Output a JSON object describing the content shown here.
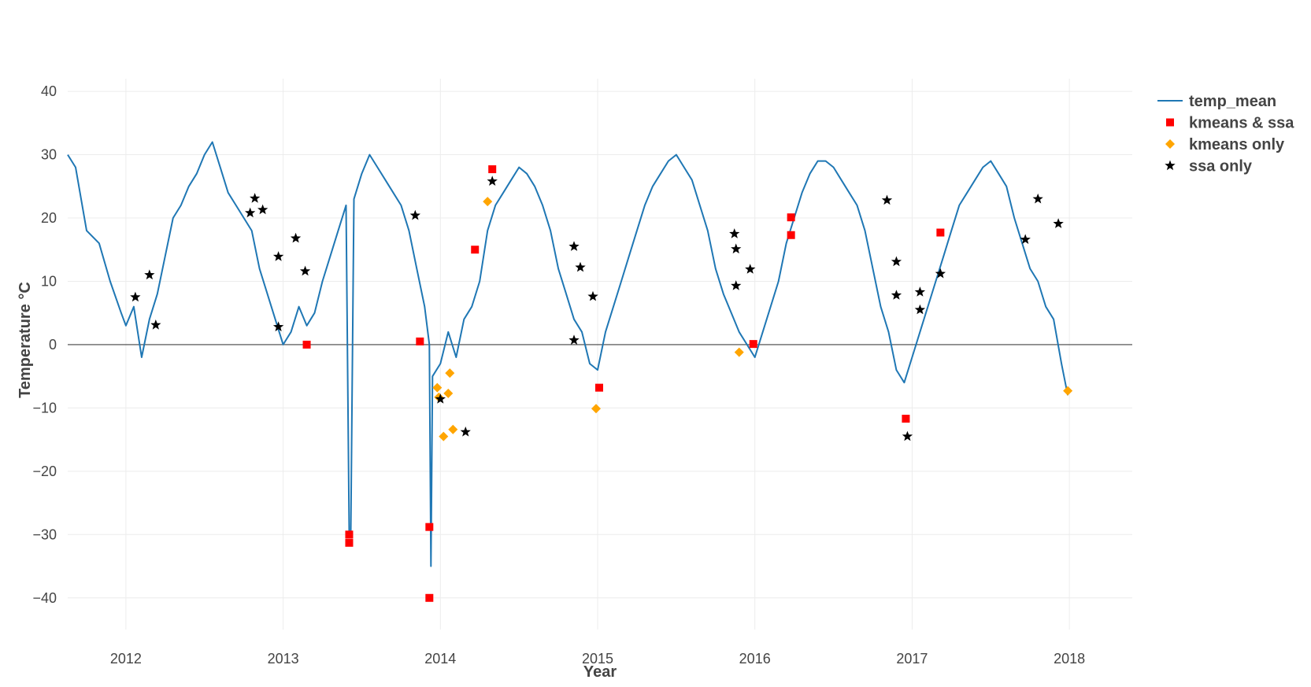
{
  "chart_data": {
    "type": "line",
    "title": "",
    "xlabel": "Year",
    "ylabel": "Temperature °C",
    "x_ticks": [
      "2012",
      "2013",
      "2014",
      "2015",
      "2016",
      "2017",
      "2018"
    ],
    "y_ticks": [
      40,
      30,
      20,
      10,
      0,
      -10,
      -20,
      -30,
      -40
    ],
    "y_tick_labels": [
      "40",
      "30",
      "20",
      "10",
      "0",
      "−10",
      "−20",
      "−30",
      "−40"
    ],
    "xlim": [
      2011.63,
      2018.4
    ],
    "ylim": [
      -45,
      42
    ],
    "grid": true,
    "zero_line": true,
    "legend_position": "top-right",
    "series": [
      {
        "name": "temp_mean",
        "type": "line",
        "color": "#1f77b4",
        "x": [
          2011.63,
          2011.68,
          2011.75,
          2011.83,
          2011.9,
          2011.97,
          2012.0,
          2012.05,
          2012.1,
          2012.15,
          2012.2,
          2012.25,
          2012.3,
          2012.35,
          2012.4,
          2012.45,
          2012.5,
          2012.55,
          2012.6,
          2012.65,
          2012.7,
          2012.75,
          2012.8,
          2012.85,
          2012.9,
          2012.95,
          2013.0,
          2013.05,
          2013.1,
          2013.15,
          2013.2,
          2013.25,
          2013.3,
          2013.35,
          2013.4,
          2013.42,
          2013.43,
          2013.45,
          2013.5,
          2013.55,
          2013.6,
          2013.65,
          2013.7,
          2013.75,
          2013.8,
          2013.85,
          2013.9,
          2013.93,
          2013.94,
          2013.95,
          2014.0,
          2014.05,
          2014.1,
          2014.15,
          2014.2,
          2014.25,
          2014.3,
          2014.35,
          2014.4,
          2014.45,
          2014.5,
          2014.55,
          2014.6,
          2014.65,
          2014.7,
          2014.75,
          2014.8,
          2014.85,
          2014.9,
          2014.95,
          2015.0,
          2015.05,
          2015.1,
          2015.15,
          2015.2,
          2015.25,
          2015.3,
          2015.35,
          2015.4,
          2015.45,
          2015.5,
          2015.55,
          2015.6,
          2015.65,
          2015.7,
          2015.75,
          2015.8,
          2015.85,
          2015.9,
          2015.95,
          2016.0,
          2016.05,
          2016.1,
          2016.15,
          2016.2,
          2016.25,
          2016.3,
          2016.35,
          2016.4,
          2016.45,
          2016.5,
          2016.55,
          2016.6,
          2016.65,
          2016.7,
          2016.75,
          2016.8,
          2016.85,
          2016.9,
          2016.95,
          2017.0,
          2017.05,
          2017.1,
          2017.15,
          2017.2,
          2017.25,
          2017.3,
          2017.35,
          2017.4,
          2017.45,
          2017.5,
          2017.55,
          2017.6,
          2017.65,
          2017.7,
          2017.75,
          2017.8,
          2017.85,
          2017.9,
          2017.95,
          2017.99
        ],
        "y": [
          30,
          28,
          18,
          16,
          10,
          5,
          3,
          6,
          -2,
          4,
          8,
          14,
          20,
          22,
          25,
          27,
          30,
          32,
          28,
          24,
          22,
          20,
          18,
          12,
          8,
          4,
          0,
          2,
          6,
          3,
          5,
          10,
          14,
          18,
          22,
          -30,
          -30,
          23,
          27,
          30,
          28,
          26,
          24,
          22,
          18,
          12,
          6,
          0,
          -35,
          -5,
          -3,
          2,
          -2,
          4,
          6,
          10,
          18,
          22,
          24,
          26,
          28,
          27,
          25,
          22,
          18,
          12,
          8,
          4,
          2,
          -3,
          -4,
          2,
          6,
          10,
          14,
          18,
          22,
          25,
          27,
          29,
          30,
          28,
          26,
          22,
          18,
          12,
          8,
          5,
          2,
          0,
          -2,
          2,
          6,
          10,
          16,
          20,
          24,
          27,
          29,
          29,
          28,
          26,
          24,
          22,
          18,
          12,
          6,
          2,
          -4,
          -6,
          -2,
          2,
          6,
          10,
          14,
          18,
          22,
          24,
          26,
          28,
          29,
          27,
          25,
          20,
          16,
          12,
          10,
          6,
          4,
          -3,
          -8
        ]
      },
      {
        "name": "kmeans & ssa",
        "type": "scatter",
        "marker": "square",
        "color": "#ff0000",
        "x": [
          2013.15,
          2013.42,
          2013.42,
          2013.87,
          2013.93,
          2013.93,
          2014.22,
          2014.33,
          2015.01,
          2015.99,
          2016.23,
          2016.23,
          2016.96,
          2017.18
        ],
        "y": [
          0,
          -30,
          -31.3,
          0.5,
          -28.8,
          -40,
          15,
          27.7,
          -6.8,
          0.1,
          20.1,
          17.3,
          -11.7,
          17.7
        ]
      },
      {
        "name": "kmeans only",
        "type": "scatter",
        "marker": "diamond",
        "color": "#ffa500",
        "x": [
          2013.98,
          2013.99,
          2014.02,
          2014.05,
          2014.06,
          2014.08,
          2014.3,
          2014.99,
          2015.9,
          2017.99
        ],
        "y": [
          -6.8,
          -8.3,
          -14.5,
          -7.7,
          -4.5,
          -13.4,
          22.6,
          -10.1,
          -1.2,
          -7.3
        ]
      },
      {
        "name": "ssa only",
        "type": "scatter",
        "marker": "star",
        "color": "#000000",
        "x": [
          2012.06,
          2012.15,
          2012.19,
          2012.79,
          2012.82,
          2012.87,
          2012.97,
          2012.97,
          2013.08,
          2013.14,
          2013.84,
          2014.0,
          2014.16,
          2014.33,
          2014.85,
          2014.85,
          2014.89,
          2014.97,
          2015.87,
          2015.88,
          2015.88,
          2015.97,
          2016.84,
          2016.9,
          2016.9,
          2016.97,
          2017.05,
          2017.05,
          2017.18,
          2017.72,
          2017.8,
          2017.93
        ],
        "y": [
          7.5,
          11,
          3.1,
          20.8,
          23.1,
          21.3,
          13.9,
          2.8,
          16.8,
          11.6,
          20.4,
          -8.6,
          -13.8,
          25.8,
          15.5,
          0.7,
          12.2,
          7.6,
          17.5,
          15.1,
          9.3,
          11.9,
          22.8,
          13.1,
          7.8,
          -14.5,
          8.3,
          5.5,
          11.2,
          16.6,
          23,
          19.1
        ]
      }
    ]
  }
}
